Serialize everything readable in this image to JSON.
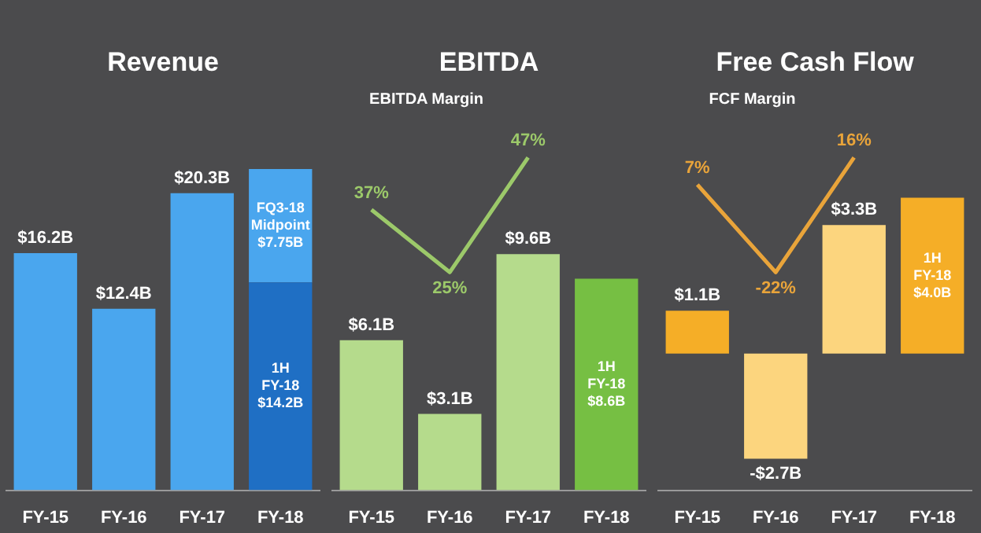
{
  "chart_data": [
    {
      "type": "bar",
      "title": "Revenue",
      "categories": [
        "FY-15",
        "FY-16",
        "FY-17",
        "FY-18"
      ],
      "stacked": true,
      "series": [
        {
          "colors": [
            "#4aa6ee",
            "#4aa6ee",
            "#4aa6ee",
            "#1f6fc4"
          ],
          "values": [
            16.2,
            12.4,
            20.3,
            14.2
          ],
          "value_labels": [
            "$16.2B",
            "$12.4B",
            "$20.3B",
            "$14.2B"
          ]
        },
        {
          "color": "#4aa6ee",
          "values": [
            null,
            null,
            null,
            7.75
          ],
          "value_labels": [
            null,
            null,
            null,
            "$7.75B"
          ]
        }
      ],
      "annotations": [
        "1H FY-18",
        "FQ3-18 Midpoint"
      ]
    },
    {
      "type": "bar",
      "title": "EBITDA",
      "categories": [
        "FY-15",
        "FY-16",
        "FY-17",
        "FY-18"
      ],
      "series": [
        {
          "colors": [
            "#b5db8c",
            "#b5db8c",
            "#b5db8c",
            "#76bf43"
          ],
          "values": [
            6.1,
            3.1,
            9.6,
            8.6
          ],
          "value_labels": [
            "$6.1B",
            "$3.1B",
            "$9.6B",
            "$8.6B"
          ]
        },
        {
          "type": "line",
          "axis": "y2",
          "name": "EBITDA Margin",
          "color": "#9cc96a",
          "values": [
            37,
            25,
            47,
            null
          ],
          "value_labels": [
            "37%",
            "25%",
            "47%",
            null
          ]
        }
      ],
      "annotations": [
        "1H FY-18"
      ]
    },
    {
      "type": "bar",
      "title": "Free Cash Flow",
      "categories": [
        "FY-15",
        "FY-16",
        "FY-17",
        "FY-18"
      ],
      "series": [
        {
          "colors": [
            "#f5ae27",
            "#fcd57e",
            "#fcd57e",
            "#f5ae27"
          ],
          "values": [
            1.1,
            -2.7,
            3.3,
            4.0
          ],
          "value_labels": [
            "$1.1B",
            "-$2.7B",
            "$3.3B",
            "$4.0B"
          ]
        },
        {
          "type": "line",
          "axis": "y2",
          "name": "FCF Margin",
          "color": "#e9a43a",
          "values": [
            7,
            -22,
            16,
            null
          ],
          "value_labels": [
            "7%",
            "-22%",
            "16%",
            null
          ]
        }
      ],
      "annotations": [
        "1H FY-18"
      ]
    }
  ]
}
